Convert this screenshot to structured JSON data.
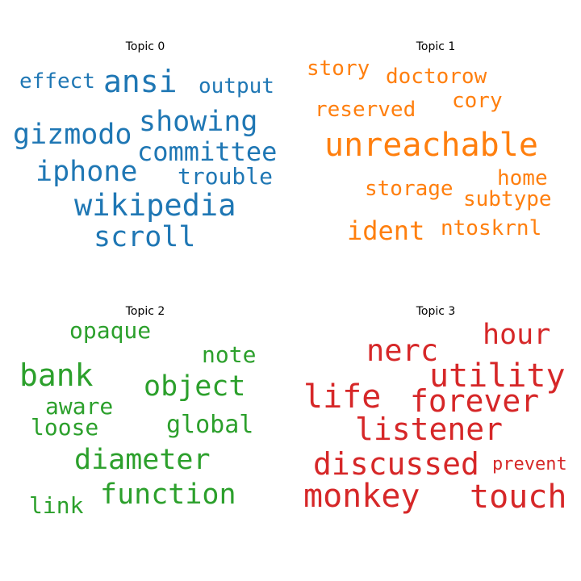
{
  "topics": [
    {
      "title": "Topic 0",
      "color": "#1f77b4",
      "words": [
        "effect",
        "ansi",
        "output",
        "gizmodo",
        "showing",
        "committee",
        "iphone",
        "trouble",
        "wikipedia",
        "scroll"
      ]
    },
    {
      "title": "Topic 1",
      "color": "#ff7f0e",
      "words": [
        "story",
        "doctorow",
        "reserved",
        "cory",
        "unreachable",
        "storage",
        "home",
        "subtype",
        "ident",
        "ntoskrnl"
      ]
    },
    {
      "title": "Topic 2",
      "color": "#2ca02c",
      "words": [
        "opaque",
        "note",
        "bank",
        "object",
        "aware",
        "loose",
        "global",
        "diameter",
        "function",
        "link"
      ]
    },
    {
      "title": "Topic 3",
      "color": "#d62728",
      "words": [
        "hour",
        "nerc",
        "utility",
        "life",
        "forever",
        "listener",
        "discussed",
        "prevent",
        "monkey",
        "touch"
      ]
    }
  ]
}
